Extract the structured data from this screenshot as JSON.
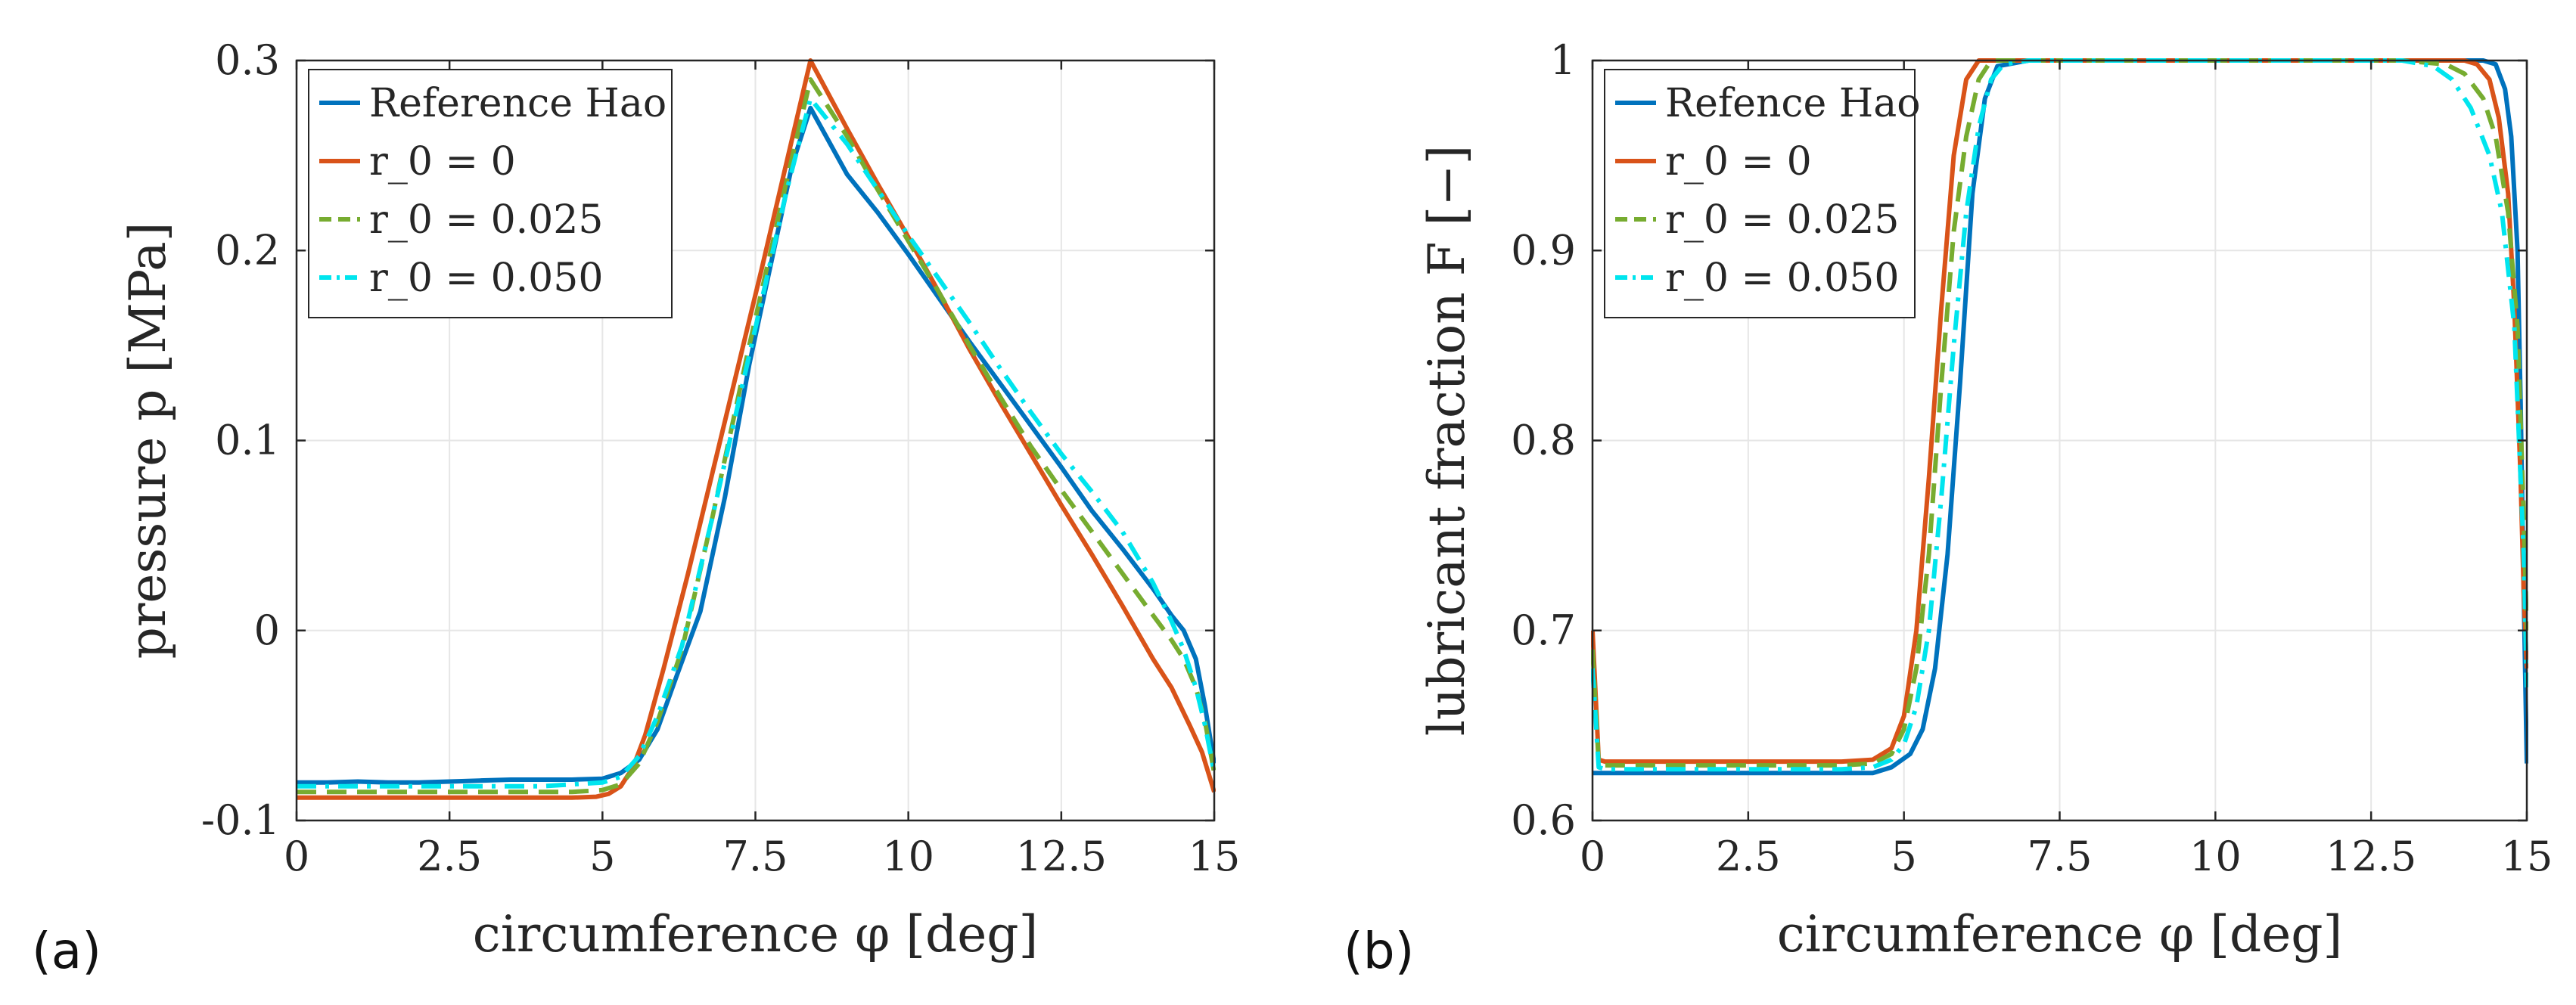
{
  "chart_data": [
    {
      "type": "line",
      "panel_label": "(a)",
      "xlabel": "circumference φ [deg]",
      "ylabel": "pressure p [MPa]",
      "xlim": [
        0,
        15
      ],
      "ylim": [
        -0.1,
        0.3
      ],
      "grid": true,
      "legend_location": "top-left",
      "xticks": [
        0,
        2.5,
        5,
        7.5,
        10,
        12.5,
        15
      ],
      "xtick_labels": [
        "0",
        "2.5",
        "5",
        "7.5",
        "10",
        "12.5",
        "15"
      ],
      "yticks": [
        -0.1,
        0,
        0.1,
        0.2,
        0.3
      ],
      "ytick_labels": [
        "-0.1",
        "0",
        "0.1",
        "0.2",
        "0.3"
      ],
      "series": [
        {
          "name": "Reference Hao",
          "color": "#0072BD",
          "dash": "solid",
          "x": [
            0,
            0.5,
            1.0,
            1.5,
            2.0,
            2.5,
            3.0,
            3.5,
            4.0,
            4.5,
            5.0,
            5.3,
            5.6,
            5.9,
            6.2,
            6.6,
            7.0,
            7.4,
            7.8,
            8.1,
            8.4,
            9.0,
            9.5,
            10.0,
            10.5,
            11.0,
            11.5,
            12.0,
            12.5,
            13.0,
            13.5,
            14.0,
            14.3,
            14.5,
            14.7,
            14.85,
            15.0
          ],
          "y": [
            -0.08,
            -0.08,
            -0.0795,
            -0.08,
            -0.08,
            -0.0795,
            -0.079,
            -0.0785,
            -0.0785,
            -0.0785,
            -0.078,
            -0.075,
            -0.068,
            -0.052,
            -0.025,
            0.01,
            0.07,
            0.14,
            0.2,
            0.245,
            0.275,
            0.24,
            0.22,
            0.198,
            0.175,
            0.152,
            0.13,
            0.108,
            0.086,
            0.063,
            0.043,
            0.022,
            0.008,
            0.0,
            -0.015,
            -0.04,
            -0.07
          ]
        },
        {
          "name": "r_0 = 0",
          "color": "#D95319",
          "dash": "solid",
          "x": [
            0,
            1.0,
            2.0,
            3.0,
            4.0,
            4.5,
            4.9,
            5.1,
            5.3,
            5.5,
            5.7,
            6.0,
            6.4,
            7.0,
            7.6,
            8.0,
            8.4,
            9.0,
            9.5,
            10.0,
            10.5,
            11.0,
            11.5,
            12.0,
            12.5,
            13.0,
            13.5,
            14.0,
            14.3,
            14.6,
            14.8,
            15.0
          ],
          "y": [
            -0.088,
            -0.088,
            -0.088,
            -0.088,
            -0.088,
            -0.088,
            -0.0875,
            -0.086,
            -0.082,
            -0.072,
            -0.055,
            -0.02,
            0.03,
            0.11,
            0.19,
            0.245,
            0.3,
            0.264,
            0.235,
            0.207,
            0.178,
            0.148,
            0.12,
            0.093,
            0.066,
            0.04,
            0.013,
            -0.015,
            -0.03,
            -0.05,
            -0.064,
            -0.085
          ]
        },
        {
          "name": "r_0 = 0.025",
          "color": "#77AC30",
          "dash": "dashed",
          "x": [
            0,
            1.0,
            2.0,
            3.0,
            4.0,
            4.5,
            5.0,
            5.3,
            5.6,
            5.9,
            6.3,
            6.8,
            7.4,
            8.0,
            8.4,
            9.0,
            9.5,
            10.0,
            10.5,
            11.0,
            11.5,
            12.0,
            12.5,
            13.0,
            13.5,
            14.0,
            14.3,
            14.5,
            14.7,
            14.85,
            15.0
          ],
          "y": [
            -0.085,
            -0.085,
            -0.085,
            -0.085,
            -0.085,
            -0.085,
            -0.084,
            -0.081,
            -0.07,
            -0.048,
            -0.01,
            0.06,
            0.15,
            0.235,
            0.29,
            0.26,
            0.232,
            0.205,
            0.178,
            0.15,
            0.123,
            0.097,
            0.074,
            0.052,
            0.03,
            0.008,
            -0.005,
            -0.015,
            -0.03,
            -0.048,
            -0.075
          ]
        },
        {
          "name": "r_0 = 0.050",
          "color": "#00E5EE",
          "dash": "dashdot",
          "x": [
            0,
            1.0,
            2.0,
            3.0,
            4.0,
            4.5,
            5.0,
            5.3,
            5.6,
            5.9,
            6.3,
            6.8,
            7.4,
            8.0,
            8.4,
            9.0,
            9.5,
            10.0,
            10.5,
            11.0,
            11.5,
            12.0,
            12.5,
            13.0,
            13.5,
            14.0,
            14.3,
            14.5,
            14.7,
            14.85,
            15.0
          ],
          "y": [
            -0.082,
            -0.082,
            -0.082,
            -0.082,
            -0.082,
            -0.081,
            -0.08,
            -0.077,
            -0.066,
            -0.045,
            -0.008,
            0.06,
            0.145,
            0.23,
            0.28,
            0.256,
            0.232,
            0.208,
            0.185,
            0.162,
            0.138,
            0.115,
            0.093,
            0.073,
            0.052,
            0.025,
            0.005,
            -0.01,
            -0.03,
            -0.05,
            -0.075
          ]
        }
      ]
    },
    {
      "type": "line",
      "panel_label": "(b)",
      "xlabel": "circumference φ [deg]",
      "ylabel": "lubricant fraction F [−]",
      "xlim": [
        0,
        15
      ],
      "ylim": [
        0.6,
        1.0
      ],
      "grid": true,
      "legend_location": "top-left",
      "xticks": [
        0,
        2.5,
        5,
        7.5,
        10,
        12.5,
        15
      ],
      "xtick_labels": [
        "0",
        "2.5",
        "5",
        "7.5",
        "10",
        "12.5",
        "15"
      ],
      "yticks": [
        0.6,
        0.7,
        0.8,
        0.9,
        1.0
      ],
      "ytick_labels": [
        "0.6",
        "0.7",
        "0.8",
        "0.9",
        "1"
      ],
      "series": [
        {
          "name": "Refence Hao",
          "color": "#0072BD",
          "dash": "solid",
          "x": [
            0,
            0.15,
            1.0,
            2.0,
            3.0,
            4.0,
            4.5,
            4.8,
            5.1,
            5.3,
            5.5,
            5.7,
            5.9,
            6.1,
            6.3,
            6.5,
            7.0,
            8.0,
            9.0,
            10.0,
            11.0,
            12.0,
            13.0,
            14.0,
            14.3,
            14.5,
            14.65,
            14.75,
            14.85,
            14.9,
            14.95,
            15.0
          ],
          "y": [
            0.625,
            0.625,
            0.625,
            0.625,
            0.625,
            0.625,
            0.625,
            0.628,
            0.635,
            0.648,
            0.68,
            0.74,
            0.83,
            0.93,
            0.98,
            0.997,
            1.0,
            1.0,
            1.0,
            1.0,
            1.0,
            1.0,
            1.0,
            1.0,
            1.0,
            0.998,
            0.985,
            0.96,
            0.9,
            0.82,
            0.72,
            0.63
          ]
        },
        {
          "name": "r_0 = 0",
          "color": "#D95319",
          "dash": "solid",
          "x": [
            0,
            0.1,
            0.2,
            1.0,
            2.0,
            3.0,
            4.0,
            4.5,
            4.8,
            5.0,
            5.2,
            5.4,
            5.6,
            5.8,
            6.0,
            6.2,
            7.0,
            8.0,
            9.0,
            10.0,
            11.0,
            12.0,
            13.0,
            14.0,
            14.2,
            14.4,
            14.55,
            14.7,
            14.8,
            14.9,
            14.95,
            15.0
          ],
          "y": [
            0.7,
            0.632,
            0.631,
            0.631,
            0.631,
            0.631,
            0.631,
            0.632,
            0.638,
            0.655,
            0.7,
            0.78,
            0.87,
            0.95,
            0.99,
            1.0,
            1.0,
            1.0,
            1.0,
            1.0,
            1.0,
            1.0,
            1.0,
            1.0,
            0.998,
            0.99,
            0.97,
            0.93,
            0.87,
            0.78,
            0.72,
            0.68
          ]
        },
        {
          "name": "r_0 = 0.025",
          "color": "#77AC30",
          "dash": "dashed",
          "x": [
            0,
            0.1,
            0.2,
            1.0,
            2.0,
            3.0,
            4.0,
            4.5,
            4.8,
            5.0,
            5.2,
            5.4,
            5.6,
            5.8,
            6.0,
            6.2,
            6.4,
            7.0,
            8.0,
            9.0,
            10.0,
            11.0,
            12.0,
            13.0,
            13.7,
            14.0,
            14.3,
            14.5,
            14.7,
            14.85,
            14.95,
            15.0
          ],
          "y": [
            0.69,
            0.63,
            0.629,
            0.629,
            0.629,
            0.629,
            0.629,
            0.63,
            0.635,
            0.648,
            0.68,
            0.74,
            0.83,
            0.91,
            0.96,
            0.99,
            1.0,
            1.0,
            1.0,
            1.0,
            1.0,
            1.0,
            1.0,
            1.0,
            0.998,
            0.993,
            0.98,
            0.96,
            0.92,
            0.86,
            0.76,
            0.7
          ]
        },
        {
          "name": "r_0 = 0.050",
          "color": "#00E5EE",
          "dash": "dashdot",
          "x": [
            0,
            0.1,
            0.2,
            1.0,
            2.0,
            3.0,
            4.0,
            4.5,
            4.8,
            5.0,
            5.2,
            5.4,
            5.6,
            5.8,
            6.0,
            6.2,
            6.4,
            6.6,
            7.0,
            8.0,
            9.0,
            10.0,
            11.0,
            12.0,
            13.0,
            13.5,
            13.8,
            14.1,
            14.4,
            14.6,
            14.8,
            14.95,
            15.0
          ],
          "y": [
            0.68,
            0.628,
            0.627,
            0.627,
            0.627,
            0.627,
            0.627,
            0.628,
            0.632,
            0.64,
            0.66,
            0.7,
            0.77,
            0.85,
            0.92,
            0.965,
            0.99,
            0.998,
            1.0,
            1.0,
            1.0,
            1.0,
            1.0,
            1.0,
            1.0,
            0.997,
            0.99,
            0.975,
            0.95,
            0.92,
            0.86,
            0.74,
            0.67
          ]
        }
      ]
    }
  ]
}
